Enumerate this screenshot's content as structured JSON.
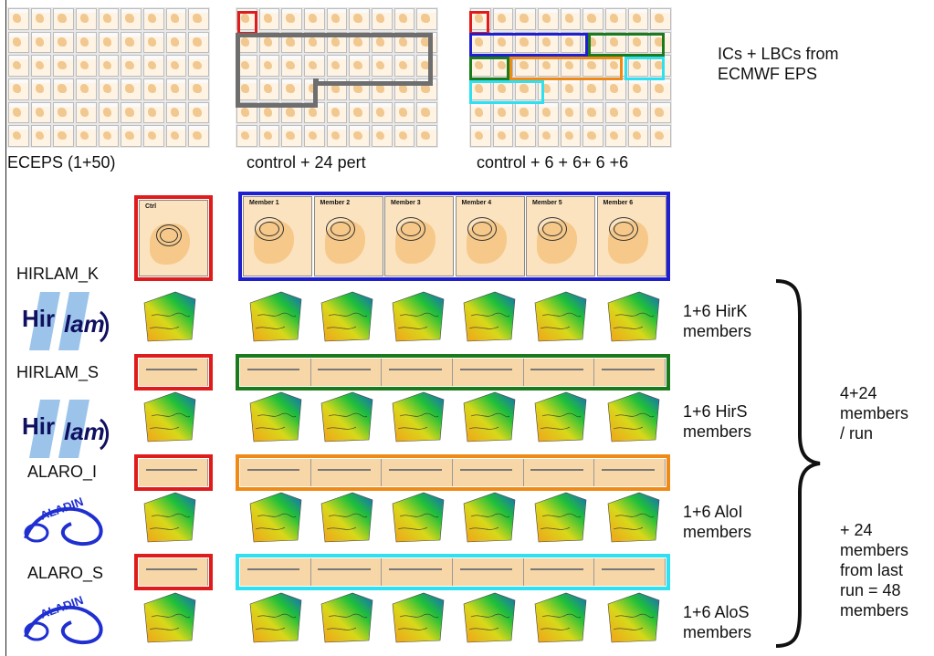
{
  "top_captions": {
    "eceps": "ECEPS (1+50)",
    "control_pert": "control + 24 pert",
    "control_six": "control + 6 + 6+ 6 +6"
  },
  "source_note": "ICs + LBCs from\nECMWF EPS",
  "models": [
    {
      "name": "HIRLAM_K",
      "logo": "hirlam-logo",
      "members_label": "1+6 HirK\nmembers"
    },
    {
      "name": "HIRLAM_S",
      "logo": "hirlam-logo",
      "members_label": "1+6 HirS\nmembers"
    },
    {
      "name": "ALARO_I",
      "logo": "aladin-logo",
      "members_label": "1+6 AloI\nmembers"
    },
    {
      "name": "ALARO_S",
      "logo": "aladin-logo",
      "members_label": "1+6 AloS\nmembers"
    }
  ],
  "logo_text": {
    "hirlam": "Hir lam",
    "aladin": "ALADIN"
  },
  "panel_titles": [
    "Ctrl",
    "Member 1",
    "Member 2",
    "Member 3",
    "Member 4",
    "Member 5",
    "Member 6"
  ],
  "run_summary": "4+24\nmembers\n/ run",
  "total_summary": "+ 24\nmembers\nfrom last\nrun = 48\nmembers",
  "colors": {
    "red": "#e01b1b",
    "blue": "#1f1fd0",
    "green": "#1b7a1b",
    "orange": "#f08a16",
    "cyan": "#2ee0f0",
    "gray": "#6e6e6e"
  }
}
